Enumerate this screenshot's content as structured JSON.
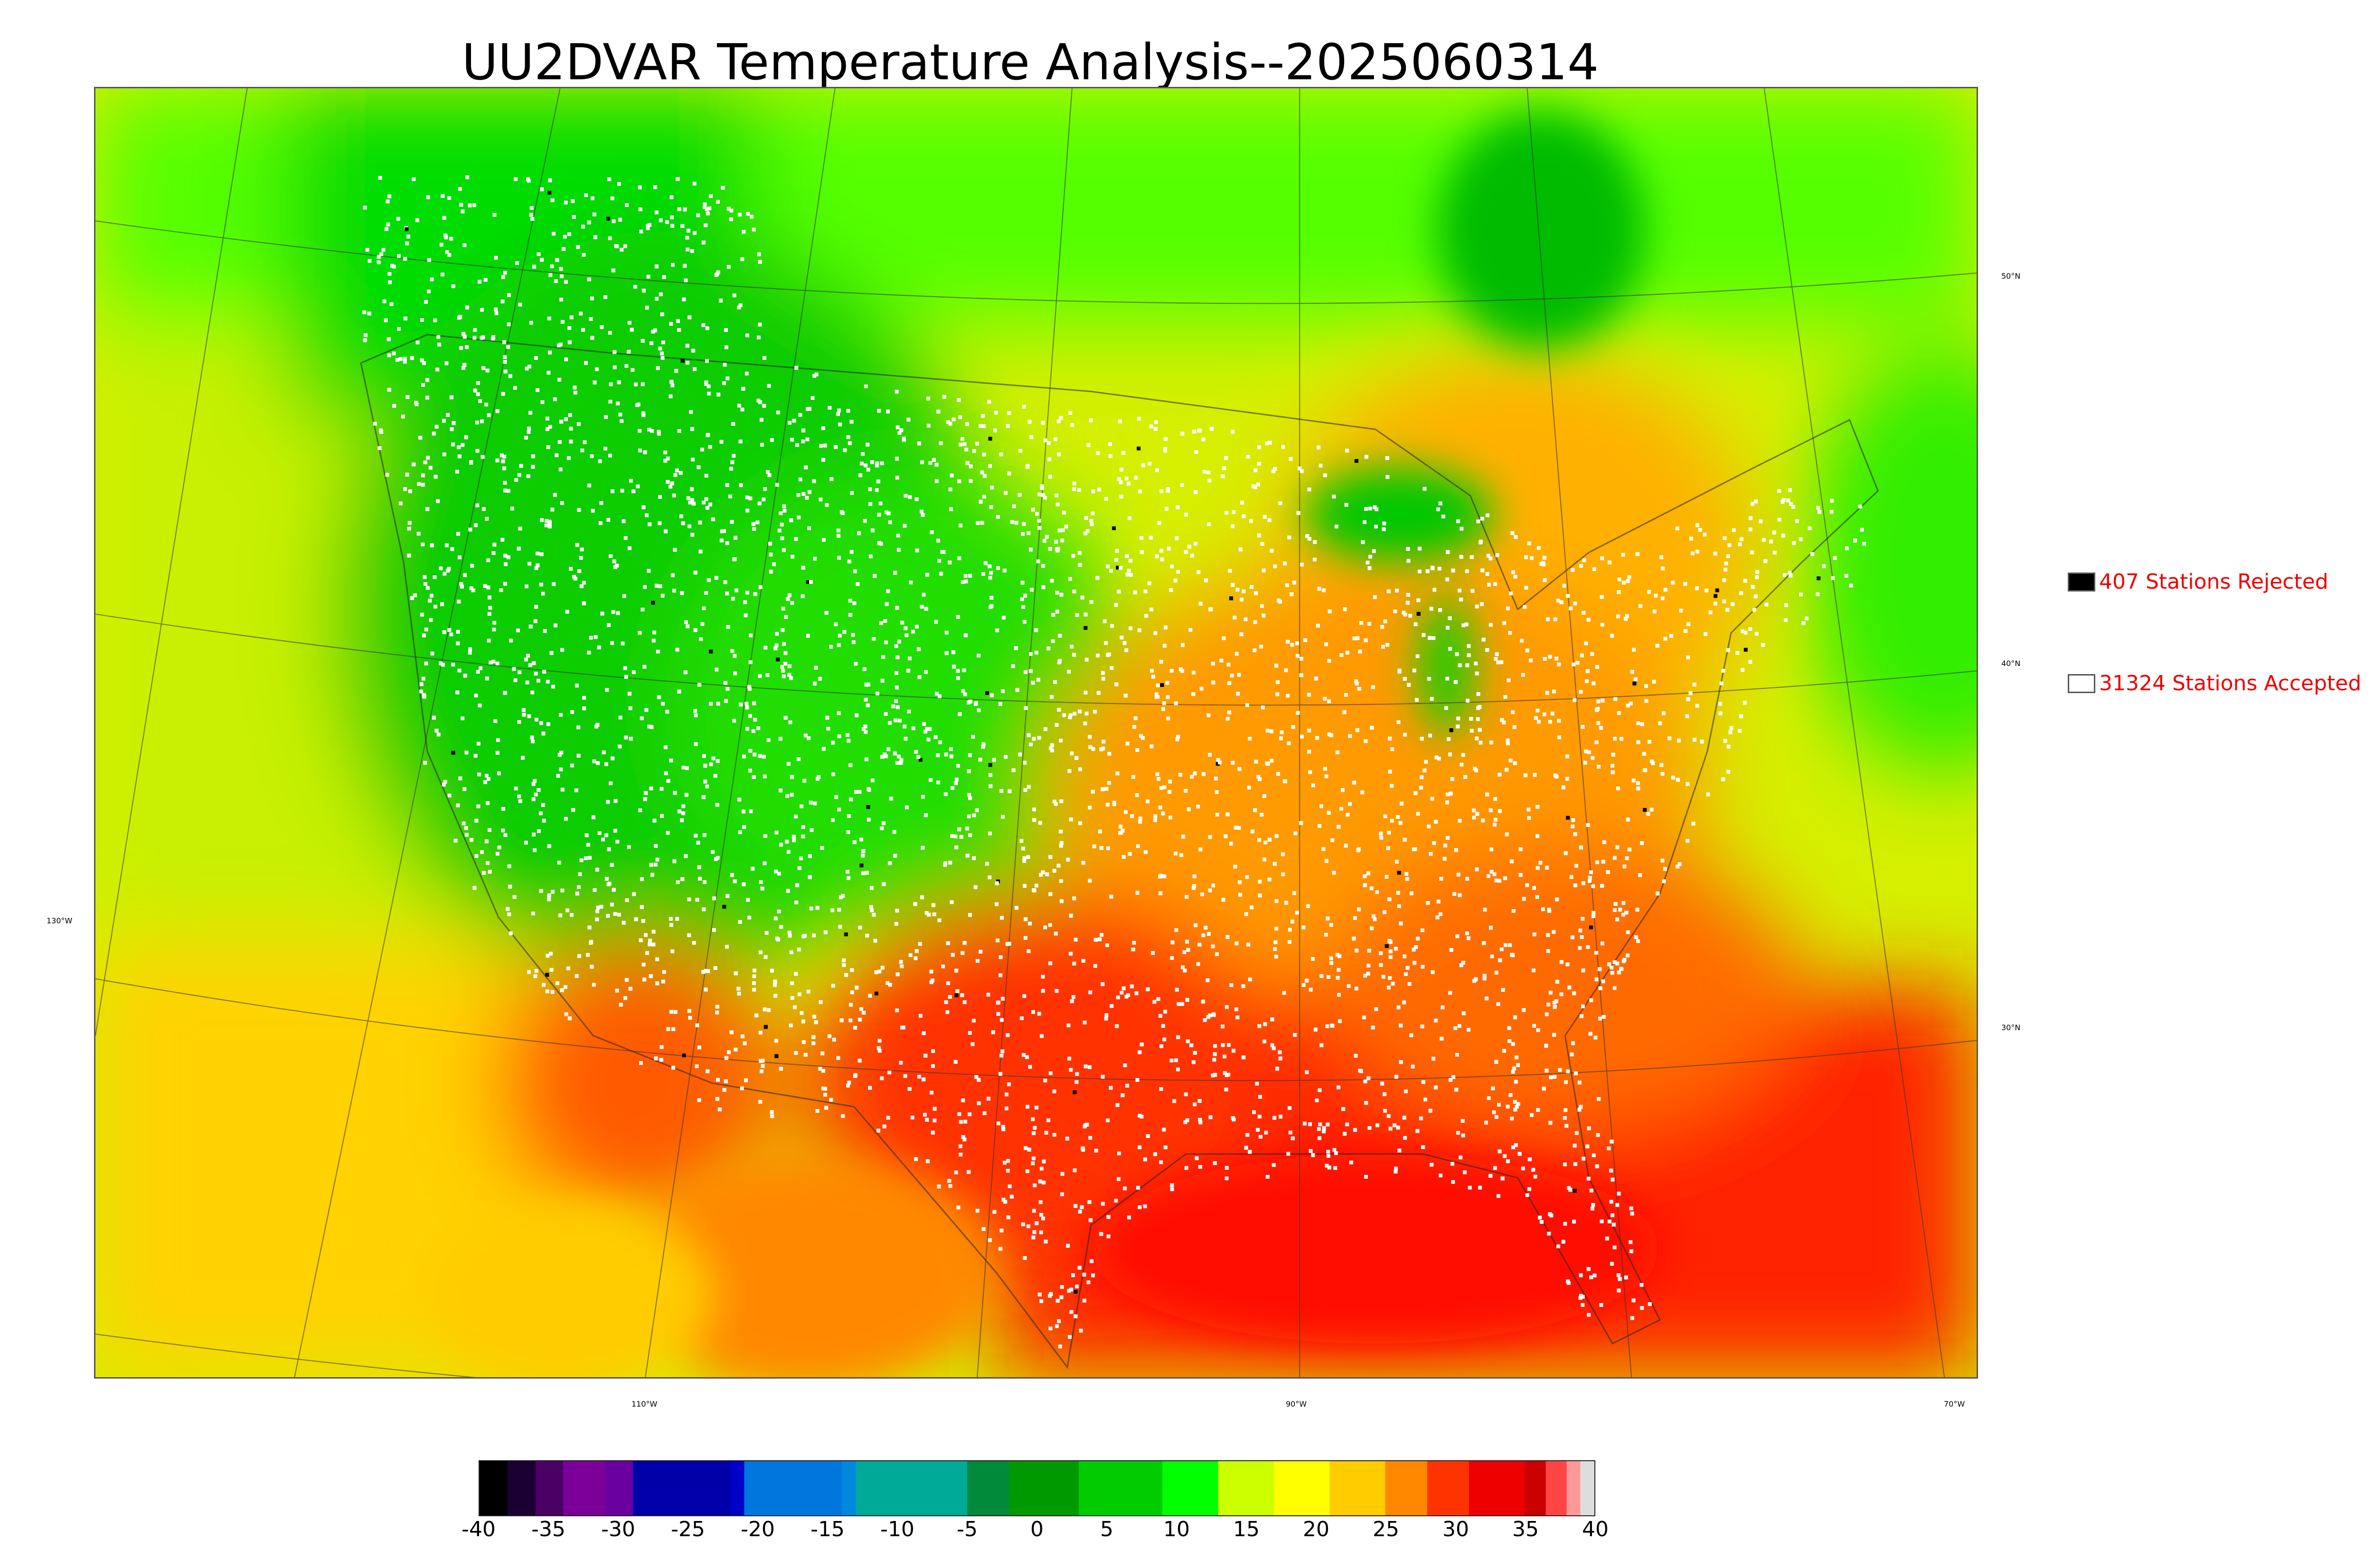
{
  "title": "UU2DVAR Temperature Analysis--2025060314",
  "map": {
    "latitude_labels": [
      "50°N",
      "40°N",
      "30°N"
    ],
    "longitude_labels": [
      "130°W",
      "110°W",
      "90°W",
      "70°W"
    ],
    "palette": {
      "cold_green": "#00b800",
      "green": "#33ff00",
      "yellow_green": "#ccff00",
      "yellow": "#ffee00",
      "orange": "#ffa500",
      "dark_orange": "#ff6a00",
      "red": "#ff1a00",
      "ocean_south": "#ff2a00",
      "ocean_west": "#d8f000",
      "lake": "#00c000",
      "station_accepted": "#ffffff",
      "station_rejected": "#000000"
    }
  },
  "legend": {
    "rejected": {
      "label": "407 Stations Rejected",
      "count": 407,
      "swatch_color": "#000000"
    },
    "accepted": {
      "label": "31324 Stations Accepted",
      "count": 31324,
      "swatch_color": "#ffffff"
    }
  },
  "colorbar": {
    "ticks": [
      "-40",
      "-35",
      "-30",
      "-25",
      "-20",
      "-15",
      "-10",
      "-5",
      "0",
      "5",
      "10",
      "15",
      "20",
      "25",
      "30",
      "35",
      "40"
    ],
    "range": [
      -40,
      40
    ],
    "stops": [
      {
        "value": -40,
        "color": "#000000"
      },
      {
        "value": -38,
        "color": "#1a0033"
      },
      {
        "value": -36,
        "color": "#4b0066"
      },
      {
        "value": -34,
        "color": "#7a0099"
      },
      {
        "value": -31,
        "color": "#6a00a0"
      },
      {
        "value": -29,
        "color": "#0000aa"
      },
      {
        "value": -22,
        "color": "#0000c8"
      },
      {
        "value": -21,
        "color": "#0077dd"
      },
      {
        "value": -14,
        "color": "#0088e0"
      },
      {
        "value": -13,
        "color": "#00aa99"
      },
      {
        "value": -6,
        "color": "#00aa99"
      },
      {
        "value": -5,
        "color": "#008a3a"
      },
      {
        "value": -2,
        "color": "#009900"
      },
      {
        "value": 3,
        "color": "#00cc00"
      },
      {
        "value": 9,
        "color": "#00ff00"
      },
      {
        "value": 13,
        "color": "#ccff00"
      },
      {
        "value": 17,
        "color": "#ffff00"
      },
      {
        "value": 21,
        "color": "#ffcc00"
      },
      {
        "value": 25,
        "color": "#ff8800"
      },
      {
        "value": 28,
        "color": "#ff3300"
      },
      {
        "value": 31,
        "color": "#ee0000"
      },
      {
        "value": 35,
        "color": "#cc0000"
      },
      {
        "value": 36.5,
        "color": "#ff4444"
      },
      {
        "value": 38,
        "color": "#ff9999"
      },
      {
        "value": 39,
        "color": "#dddddd"
      },
      {
        "value": 40,
        "color": "#cccccc"
      }
    ]
  }
}
